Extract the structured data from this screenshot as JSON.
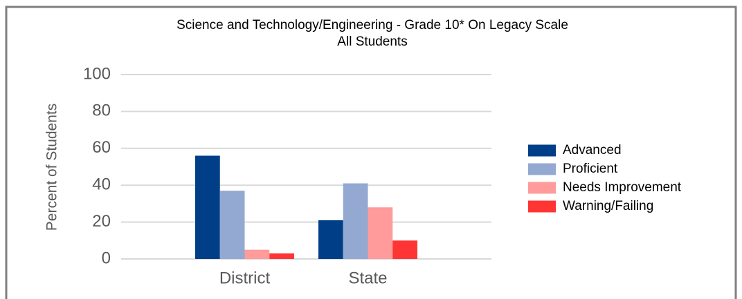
{
  "chart_data": {
    "type": "bar",
    "title": "Science and Technology/Engineering  - Grade 10* On Legacy Scale",
    "subtitle": "All Students",
    "y_label": "Percent of Students",
    "categories": [
      "District",
      "State"
    ],
    "series": [
      {
        "name": "Advanced",
        "color": "#003f87",
        "values": [
          56,
          21
        ]
      },
      {
        "name": "Proficient",
        "color": "#93a9d1",
        "values": [
          37,
          41
        ]
      },
      {
        "name": "Needs Improvement",
        "color": "#ff9b9b",
        "values": [
          5,
          28
        ]
      },
      {
        "name": "Warning/Failing",
        "color": "#ff3535",
        "values": [
          3,
          10
        ]
      }
    ],
    "ylim": [
      0,
      100
    ],
    "yticks": [
      0,
      20,
      40,
      60,
      80,
      100
    ],
    "grid": true,
    "legend": "right"
  }
}
